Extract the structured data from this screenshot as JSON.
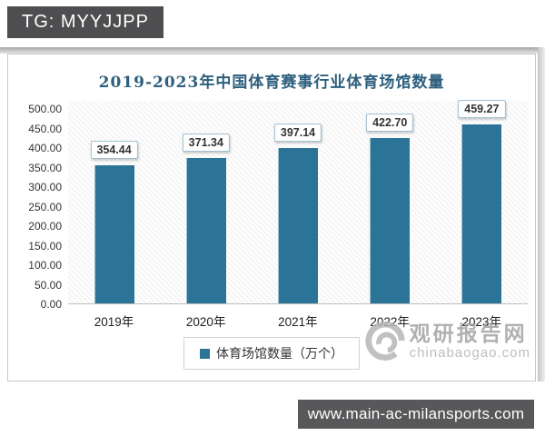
{
  "badge": {
    "text": "TG: MYYJJPP"
  },
  "footer": {
    "url": "www.main-ac-milansports.com"
  },
  "watermark": {
    "brand": "观研报告网",
    "domain": "chinabaogao.com",
    "logo_icon": "swirl-g-logo"
  },
  "colors": {
    "bar": "#2b7397",
    "title": "#2e5f7e",
    "badge_bg": "#4e4e50",
    "footer_bg": "#58585a",
    "watermark_gray": "#a3a3a3"
  },
  "chart_data": {
    "type": "bar",
    "title": "2019-2023年中国体育赛事行业体育场馆数量",
    "categories": [
      "2019年",
      "2020年",
      "2021年",
      "2022年",
      "2023年"
    ],
    "values": [
      354.44,
      371.34,
      397.14,
      422.7,
      459.27
    ],
    "series_name": "体育场馆数量（万个）",
    "legend": {
      "label": "体育场馆数量（万个）",
      "position": "bottom"
    },
    "xlabel": "",
    "ylabel": "",
    "ylim": [
      0,
      500
    ],
    "ytick_step": 50,
    "ytick_format": "2dp",
    "data_labels": true,
    "grid": false,
    "plot_background": "diagonal-hatch"
  }
}
